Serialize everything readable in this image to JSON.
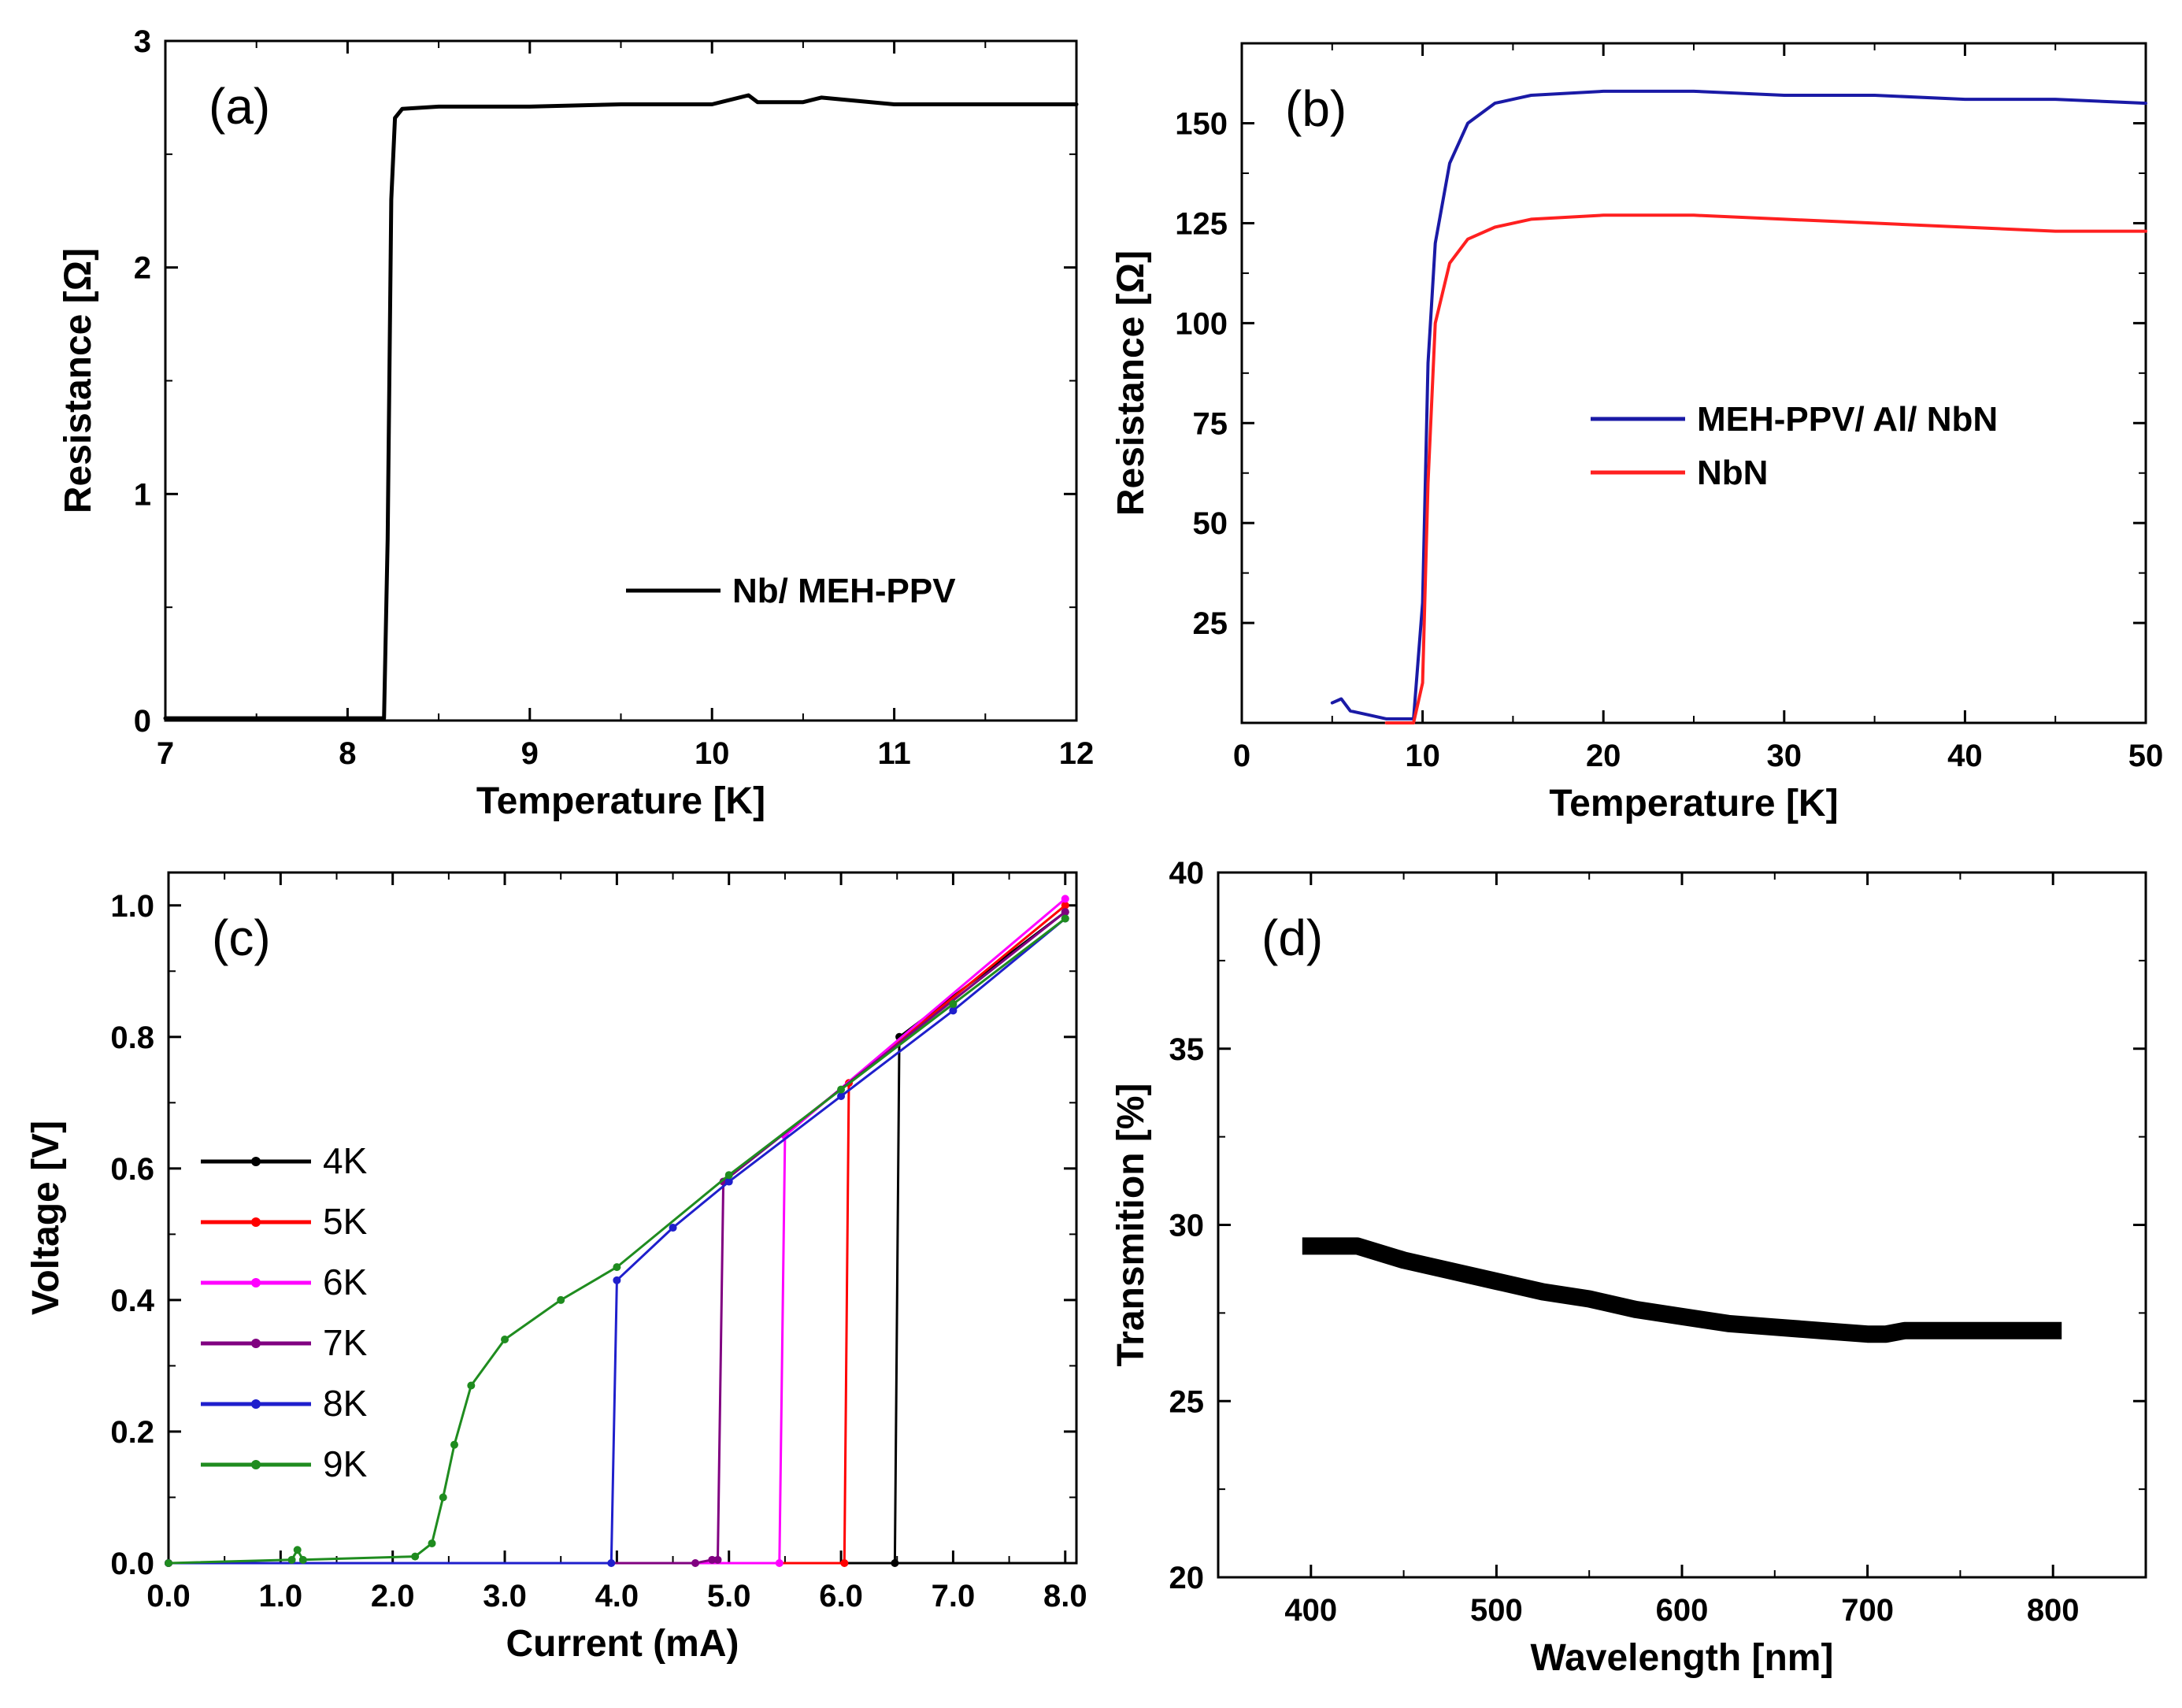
{
  "chart_data": [
    {
      "id": "a",
      "type": "line",
      "panel_label": "(a)",
      "xlabel": "Temperature [K]",
      "ylabel": "Resistance [Ω]",
      "xlim": [
        7,
        12
      ],
      "ylim": [
        0,
        3
      ],
      "xticks": [
        7,
        8,
        9,
        10,
        11,
        12
      ],
      "yticks": [
        0,
        1,
        2,
        3
      ],
      "legend_position": "right",
      "series": [
        {
          "name": "Nb/ MEH-PPV",
          "color": "#000000",
          "x": [
            7.0,
            7.5,
            8.0,
            8.2,
            8.22,
            8.24,
            8.26,
            8.3,
            8.5,
            9.0,
            9.5,
            10.0,
            10.2,
            10.25,
            10.5,
            10.6,
            11.0,
            11.5,
            12.0
          ],
          "y": [
            0.01,
            0.01,
            0.01,
            0.01,
            0.8,
            2.3,
            2.66,
            2.7,
            2.71,
            2.71,
            2.72,
            2.72,
            2.76,
            2.73,
            2.73,
            2.75,
            2.72,
            2.72,
            2.72
          ]
        }
      ]
    },
    {
      "id": "b",
      "type": "line",
      "panel_label": "(b)",
      "xlabel": "Temperature [K]",
      "ylabel": "Resistance [Ω]",
      "xlim": [
        0,
        50
      ],
      "ylim": [
        0,
        170
      ],
      "xticks": [
        0,
        10,
        20,
        30,
        40,
        50
      ],
      "yticks": [
        25,
        50,
        75,
        100,
        125,
        150
      ],
      "legend_position": "right",
      "series": [
        {
          "name": "MEH-PPV/ Al/ NbN",
          "color": "#1a1aa6",
          "x": [
            5,
            5.5,
            6,
            7,
            8,
            9.5,
            10,
            10.3,
            10.7,
            11.5,
            12.5,
            14,
            16,
            20,
            25,
            30,
            35,
            40,
            45,
            50
          ],
          "y": [
            5,
            6,
            3,
            2,
            1,
            1,
            30,
            90,
            120,
            140,
            150,
            155,
            157,
            158,
            158,
            157,
            157,
            156,
            156,
            155
          ]
        },
        {
          "name": "NbN",
          "color": "#ff2020",
          "x": [
            8,
            9.5,
            10,
            10.3,
            10.7,
            11.5,
            12.5,
            14,
            16,
            20,
            25,
            30,
            35,
            40,
            45,
            50
          ],
          "y": [
            0,
            0,
            10,
            60,
            100,
            115,
            121,
            124,
            126,
            127,
            127,
            126,
            125,
            124,
            123,
            123
          ]
        }
      ]
    },
    {
      "id": "c",
      "type": "line",
      "panel_label": "(c)",
      "xlabel": "Current (mA)",
      "ylabel": "Voltage [V]",
      "xlim": [
        0,
        8.1
      ],
      "ylim": [
        0,
        1.05
      ],
      "xticks": [
        0,
        1,
        2,
        3,
        4,
        5,
        6,
        7,
        8
      ],
      "yticks": [
        0.0,
        0.2,
        0.4,
        0.6,
        0.8,
        1.0
      ],
      "legend_position": "left",
      "series": [
        {
          "name": "4K",
          "color": "#000000",
          "x": [
            0,
            6.48,
            6.52,
            8.0
          ],
          "y": [
            0,
            0,
            0.8,
            0.99
          ]
        },
        {
          "name": "5K",
          "color": "#ff0000",
          "x": [
            0,
            6.03,
            6.07,
            8.0
          ],
          "y": [
            0,
            0,
            0.73,
            1.0
          ]
        },
        {
          "name": "6K",
          "color": "#ff00ff",
          "x": [
            0,
            5.45,
            5.5,
            8.0
          ],
          "y": [
            0,
            0,
            0.65,
            1.01
          ]
        },
        {
          "name": "7K",
          "color": "#800080",
          "x": [
            0,
            4.7,
            4.85,
            4.9,
            4.95,
            8.0
          ],
          "y": [
            0,
            0,
            0.005,
            0.005,
            0.58,
            0.99
          ]
        },
        {
          "name": "8K",
          "color": "#1f1fcc",
          "x": [
            0,
            3.95,
            4.0,
            4.5,
            5.0,
            6.0,
            7.0,
            8.0
          ],
          "y": [
            0,
            0,
            0.43,
            0.51,
            0.58,
            0.71,
            0.84,
            0.98
          ]
        },
        {
          "name": "9K",
          "color": "#1f8c1f",
          "x": [
            0,
            1.1,
            1.15,
            1.2,
            2.2,
            2.35,
            2.45,
            2.55,
            2.7,
            3.0,
            3.5,
            4.0,
            5.0,
            6.0,
            7.0,
            8.0
          ],
          "y": [
            0,
            0.005,
            0.02,
            0.005,
            0.01,
            0.03,
            0.1,
            0.18,
            0.27,
            0.34,
            0.4,
            0.45,
            0.59,
            0.72,
            0.85,
            0.98
          ]
        }
      ]
    },
    {
      "id": "d",
      "type": "line",
      "panel_label": "(d)",
      "xlabel": "Wavelength [nm]",
      "ylabel": "Transmition [%]",
      "xlim": [
        350,
        850
      ],
      "ylim": [
        20,
        40
      ],
      "xticks": [
        400,
        500,
        600,
        700,
        800
      ],
      "yticks": [
        20,
        25,
        30,
        35,
        40
      ],
      "series": [
        {
          "name": "",
          "color": "#000000",
          "x": [
            400,
            425,
            450,
            475,
            500,
            525,
            550,
            575,
            600,
            625,
            650,
            675,
            700,
            710,
            720,
            750,
            800
          ],
          "y": [
            29.4,
            29.4,
            29.0,
            28.7,
            28.4,
            28.1,
            27.9,
            27.6,
            27.4,
            27.2,
            27.1,
            27.0,
            26.9,
            26.9,
            27.0,
            27.0,
            27.0
          ]
        }
      ]
    }
  ]
}
